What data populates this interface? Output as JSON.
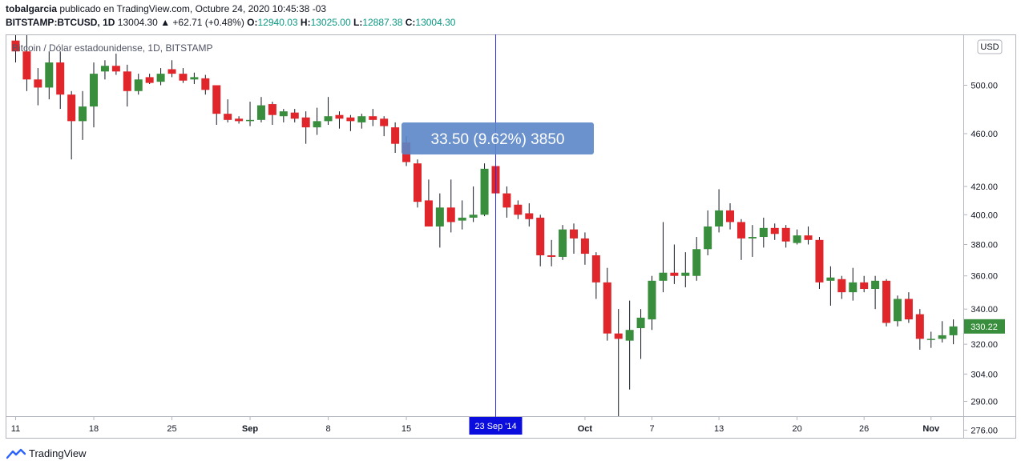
{
  "header": {
    "user": "tobalgarcia",
    "published_text": " publicado en TradingView.com, Octubre 24, 2020 10:45:38 -03",
    "symbol": "BITSTAMP:BTCUSD, 1D",
    "last_price": "13004.30",
    "change": "▲ +62.71 (+0.48%)",
    "o_label": "O:",
    "o_value": "12940.03",
    "h_label": "H:",
    "h_value": "13025.00",
    "l_label": "L:",
    "l_value": "12887.38",
    "c_label": "C:",
    "c_value": "13004.30"
  },
  "legend_title": "Bitcoin / Dólar estadounidense, 1D, BITSTAMP",
  "currency_label": "USD",
  "measure_tooltip": "33.50 (9.62%) 3850",
  "crosshair_date_label": "23 Sep '14",
  "last_price_label": "330.22",
  "footer": {
    "brand": "TradingView"
  },
  "colors": {
    "up": "#388e3c",
    "down": "#e0252b",
    "crosshair": "#2a2ee8",
    "tooltip": "#5b86c7"
  },
  "chart_data": {
    "type": "candlestick",
    "y_scale": "log",
    "ylim": [
      272,
      545
    ],
    "y_ticks": [
      276,
      290,
      304,
      320,
      340,
      360,
      380,
      400,
      420,
      460,
      500
    ],
    "x_ticks": [
      {
        "label": "11",
        "day": 0
      },
      {
        "label": "18",
        "day": 7
      },
      {
        "label": "25",
        "day": 14
      },
      {
        "label": "Sep",
        "day": 21,
        "bold": true
      },
      {
        "label": "8",
        "day": 28
      },
      {
        "label": "15",
        "day": 35
      },
      {
        "label": "Oct",
        "day": 51,
        "bold": true
      },
      {
        "label": "7",
        "day": 57
      },
      {
        "label": "13",
        "day": 63
      },
      {
        "label": "20",
        "day": 70
      },
      {
        "label": "26",
        "day": 76
      },
      {
        "label": "Nov",
        "day": 82,
        "bold": true
      }
    ],
    "crosshair_day": 43,
    "candles": [
      {
        "o": 540,
        "h": 550,
        "l": 520,
        "c": 530
      },
      {
        "o": 530,
        "h": 545,
        "l": 495,
        "c": 505
      },
      {
        "o": 505,
        "h": 515,
        "l": 483,
        "c": 498
      },
      {
        "o": 498,
        "h": 530,
        "l": 488,
        "c": 520
      },
      {
        "o": 520,
        "h": 530,
        "l": 480,
        "c": 492
      },
      {
        "o": 492,
        "h": 495,
        "l": 440,
        "c": 470
      },
      {
        "o": 470,
        "h": 495,
        "l": 455,
        "c": 482
      },
      {
        "o": 482,
        "h": 520,
        "l": 465,
        "c": 510
      },
      {
        "o": 512,
        "h": 522,
        "l": 505,
        "c": 517
      },
      {
        "o": 517,
        "h": 528,
        "l": 509,
        "c": 512
      },
      {
        "o": 512,
        "h": 518,
        "l": 482,
        "c": 495
      },
      {
        "o": 495,
        "h": 510,
        "l": 492,
        "c": 505
      },
      {
        "o": 507,
        "h": 510,
        "l": 501,
        "c": 502
      },
      {
        "o": 503,
        "h": 515,
        "l": 500,
        "c": 510
      },
      {
        "o": 514,
        "h": 522,
        "l": 507,
        "c": 510
      },
      {
        "o": 510,
        "h": 515,
        "l": 502,
        "c": 504
      },
      {
        "o": 505,
        "h": 511,
        "l": 501,
        "c": 507
      },
      {
        "o": 506,
        "h": 509,
        "l": 492,
        "c": 496
      },
      {
        "o": 500,
        "h": 500,
        "l": 467,
        "c": 476
      },
      {
        "o": 476,
        "h": 488,
        "l": 469,
        "c": 471
      },
      {
        "o": 472,
        "h": 474,
        "l": 468,
        "c": 470
      },
      {
        "o": 470,
        "h": 486,
        "l": 466,
        "c": 471
      },
      {
        "o": 471,
        "h": 490,
        "l": 469,
        "c": 483
      },
      {
        "o": 484,
        "h": 486,
        "l": 467,
        "c": 475
      },
      {
        "o": 474,
        "h": 480,
        "l": 469,
        "c": 478
      },
      {
        "o": 477,
        "h": 480,
        "l": 469,
        "c": 472
      },
      {
        "o": 473,
        "h": 478,
        "l": 452,
        "c": 465
      },
      {
        "o": 465,
        "h": 481,
        "l": 459,
        "c": 470
      },
      {
        "o": 470,
        "h": 490,
        "l": 467,
        "c": 474
      },
      {
        "o": 475,
        "h": 478,
        "l": 464,
        "c": 472
      },
      {
        "o": 473,
        "h": 475,
        "l": 462,
        "c": 470
      },
      {
        "o": 469,
        "h": 476,
        "l": 464,
        "c": 474
      },
      {
        "o": 474,
        "h": 480,
        "l": 466,
        "c": 471
      },
      {
        "o": 472,
        "h": 474,
        "l": 458,
        "c": 466
      },
      {
        "o": 465,
        "h": 469,
        "l": 445,
        "c": 452
      },
      {
        "o": 453,
        "h": 458,
        "l": 435,
        "c": 438
      },
      {
        "o": 437,
        "h": 440,
        "l": 405,
        "c": 409
      },
      {
        "o": 410,
        "h": 425,
        "l": 392,
        "c": 392
      },
      {
        "o": 392,
        "h": 415,
        "l": 378,
        "c": 405
      },
      {
        "o": 405,
        "h": 425,
        "l": 388,
        "c": 395
      },
      {
        "o": 396,
        "h": 410,
        "l": 390,
        "c": 398
      },
      {
        "o": 398,
        "h": 420,
        "l": 395,
        "c": 400
      },
      {
        "o": 400,
        "h": 437,
        "l": 399,
        "c": 433
      },
      {
        "o": 435,
        "h": 436,
        "l": 410,
        "c": 415
      },
      {
        "o": 415,
        "h": 420,
        "l": 398,
        "c": 405
      },
      {
        "o": 407,
        "h": 410,
        "l": 397,
        "c": 400
      },
      {
        "o": 401,
        "h": 408,
        "l": 392,
        "c": 397
      },
      {
        "o": 398,
        "h": 400,
        "l": 366,
        "c": 373
      },
      {
        "o": 373,
        "h": 383,
        "l": 366,
        "c": 372
      },
      {
        "o": 372,
        "h": 393,
        "l": 370,
        "c": 390
      },
      {
        "o": 390,
        "h": 394,
        "l": 374,
        "c": 384
      },
      {
        "o": 384,
        "h": 388,
        "l": 367,
        "c": 374
      },
      {
        "o": 373,
        "h": 375,
        "l": 346,
        "c": 356
      },
      {
        "o": 356,
        "h": 365,
        "l": 322,
        "c": 326
      },
      {
        "o": 326,
        "h": 340,
        "l": 276,
        "c": 323
      },
      {
        "o": 322,
        "h": 345,
        "l": 296,
        "c": 328
      },
      {
        "o": 329,
        "h": 340,
        "l": 312,
        "c": 335
      },
      {
        "o": 334,
        "h": 360,
        "l": 328,
        "c": 357
      },
      {
        "o": 357,
        "h": 395,
        "l": 350,
        "c": 362
      },
      {
        "o": 362,
        "h": 380,
        "l": 355,
        "c": 360
      },
      {
        "o": 360,
        "h": 375,
        "l": 353,
        "c": 362
      },
      {
        "o": 360,
        "h": 385,
        "l": 357,
        "c": 377
      },
      {
        "o": 377,
        "h": 403,
        "l": 373,
        "c": 392
      },
      {
        "o": 392,
        "h": 418,
        "l": 388,
        "c": 403
      },
      {
        "o": 403,
        "h": 408,
        "l": 390,
        "c": 395
      },
      {
        "o": 395,
        "h": 397,
        "l": 370,
        "c": 384
      },
      {
        "o": 384,
        "h": 393,
        "l": 372,
        "c": 385
      },
      {
        "o": 385,
        "h": 398,
        "l": 378,
        "c": 391
      },
      {
        "o": 391,
        "h": 394,
        "l": 383,
        "c": 387
      },
      {
        "o": 391,
        "h": 393,
        "l": 378,
        "c": 382
      },
      {
        "o": 381,
        "h": 390,
        "l": 380,
        "c": 386
      },
      {
        "o": 386,
        "h": 392,
        "l": 380,
        "c": 383
      },
      {
        "o": 383,
        "h": 385,
        "l": 352,
        "c": 356
      },
      {
        "o": 357,
        "h": 366,
        "l": 342,
        "c": 359
      },
      {
        "o": 358,
        "h": 360,
        "l": 346,
        "c": 350
      },
      {
        "o": 350,
        "h": 365,
        "l": 345,
        "c": 356
      },
      {
        "o": 356,
        "h": 360,
        "l": 350,
        "c": 352
      },
      {
        "o": 352,
        "h": 360,
        "l": 340,
        "c": 357
      },
      {
        "o": 357,
        "h": 358,
        "l": 330,
        "c": 332
      },
      {
        "o": 333,
        "h": 348,
        "l": 330,
        "c": 346
      },
      {
        "o": 346,
        "h": 350,
        "l": 332,
        "c": 334
      },
      {
        "o": 337,
        "h": 340,
        "l": 317,
        "c": 323
      },
      {
        "o": 323,
        "h": 327,
        "l": 318,
        "c": 323
      },
      {
        "o": 323,
        "h": 333,
        "l": 321,
        "c": 325
      },
      {
        "o": 325,
        "h": 334,
        "l": 320,
        "c": 330
      }
    ]
  }
}
